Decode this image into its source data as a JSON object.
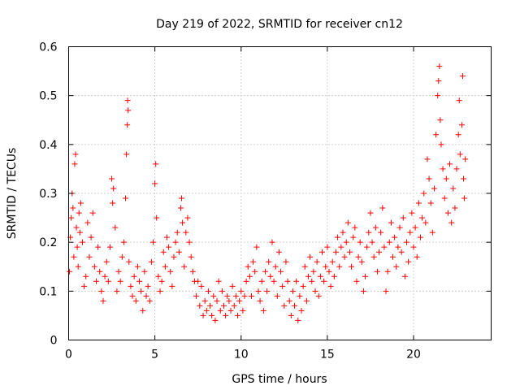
{
  "chart_data": {
    "type": "scatter",
    "title": "Day 219 of 2022, SRMTID for receiver cn12",
    "xlabel": "GPS time / hours",
    "ylabel": "SRMTID / TECUs",
    "xlim": [
      0,
      24.5
    ],
    "ylim": [
      0,
      0.6
    ],
    "xticks": [
      0,
      5,
      10,
      15,
      20
    ],
    "xtick_labels": [
      "0",
      "5",
      "10",
      "15",
      "20"
    ],
    "yticks": [
      0,
      0.1,
      0.2,
      0.3,
      0.4,
      0.5,
      0.6
    ],
    "ytick_labels": [
      "0",
      "0.1",
      "0.2",
      "0.3",
      "0.4",
      "0.5",
      "0.6"
    ],
    "grid": true,
    "marker": "+",
    "color": "#ff0000",
    "series": [
      {
        "name": "SRMTID",
        "points": [
          [
            0.05,
            0.14
          ],
          [
            0.1,
            0.21
          ],
          [
            0.15,
            0.25
          ],
          [
            0.2,
            0.3
          ],
          [
            0.25,
            0.27
          ],
          [
            0.3,
            0.17
          ],
          [
            0.35,
            0.36
          ],
          [
            0.4,
            0.38
          ],
          [
            0.45,
            0.23
          ],
          [
            0.5,
            0.19
          ],
          [
            0.55,
            0.15
          ],
          [
            0.6,
            0.26
          ],
          [
            0.65,
            0.22
          ],
          [
            0.7,
            0.28
          ],
          [
            0.8,
            0.2
          ],
          [
            0.9,
            0.11
          ],
          [
            1.0,
            0.13
          ],
          [
            1.1,
            0.24
          ],
          [
            1.2,
            0.17
          ],
          [
            1.3,
            0.21
          ],
          [
            1.4,
            0.26
          ],
          [
            1.5,
            0.15
          ],
          [
            1.6,
            0.12
          ],
          [
            1.7,
            0.19
          ],
          [
            1.8,
            0.14
          ],
          [
            1.9,
            0.1
          ],
          [
            2.0,
            0.08
          ],
          [
            2.1,
            0.13
          ],
          [
            2.2,
            0.16
          ],
          [
            2.3,
            0.12
          ],
          [
            2.4,
            0.19
          ],
          [
            2.5,
            0.33
          ],
          [
            2.55,
            0.28
          ],
          [
            2.6,
            0.31
          ],
          [
            2.7,
            0.23
          ],
          [
            2.8,
            0.1
          ],
          [
            2.9,
            0.14
          ],
          [
            3.0,
            0.12
          ],
          [
            3.1,
            0.17
          ],
          [
            3.2,
            0.2
          ],
          [
            3.3,
            0.29
          ],
          [
            3.35,
            0.38
          ],
          [
            3.4,
            0.44
          ],
          [
            3.42,
            0.49
          ],
          [
            3.45,
            0.47
          ],
          [
            3.5,
            0.16
          ],
          [
            3.6,
            0.11
          ],
          [
            3.7,
            0.09
          ],
          [
            3.8,
            0.13
          ],
          [
            3.9,
            0.08
          ],
          [
            4.0,
            0.15
          ],
          [
            4.1,
            0.12
          ],
          [
            4.2,
            0.1
          ],
          [
            4.3,
            0.06
          ],
          [
            4.4,
            0.14
          ],
          [
            4.5,
            0.09
          ],
          [
            4.6,
            0.11
          ],
          [
            4.7,
            0.08
          ],
          [
            4.8,
            0.16
          ],
          [
            4.9,
            0.2
          ],
          [
            5.0,
            0.32
          ],
          [
            5.05,
            0.36
          ],
          [
            5.1,
            0.25
          ],
          [
            5.2,
            0.13
          ],
          [
            5.3,
            0.1
          ],
          [
            5.4,
            0.12
          ],
          [
            5.5,
            0.18
          ],
          [
            5.6,
            0.15
          ],
          [
            5.7,
            0.21
          ],
          [
            5.8,
            0.19
          ],
          [
            5.9,
            0.14
          ],
          [
            6.0,
            0.11
          ],
          [
            6.1,
            0.17
          ],
          [
            6.2,
            0.2
          ],
          [
            6.3,
            0.22
          ],
          [
            6.4,
            0.18
          ],
          [
            6.5,
            0.27
          ],
          [
            6.55,
            0.29
          ],
          [
            6.6,
            0.24
          ],
          [
            6.7,
            0.15
          ],
          [
            6.8,
            0.22
          ],
          [
            6.9,
            0.25
          ],
          [
            7.0,
            0.2
          ],
          [
            7.1,
            0.17
          ],
          [
            7.2,
            0.14
          ],
          [
            7.3,
            0.12
          ],
          [
            7.4,
            0.09
          ],
          [
            7.5,
            0.12
          ],
          [
            7.6,
            0.07
          ],
          [
            7.7,
            0.11
          ],
          [
            7.8,
            0.05
          ],
          [
            7.9,
            0.08
          ],
          [
            8.0,
            0.06
          ],
          [
            8.1,
            0.1
          ],
          [
            8.2,
            0.07
          ],
          [
            8.3,
            0.05
          ],
          [
            8.4,
            0.09
          ],
          [
            8.5,
            0.04
          ],
          [
            8.6,
            0.08
          ],
          [
            8.7,
            0.12
          ],
          [
            8.8,
            0.06
          ],
          [
            8.9,
            0.1
          ],
          [
            9.0,
            0.07
          ],
          [
            9.1,
            0.05
          ],
          [
            9.2,
            0.09
          ],
          [
            9.3,
            0.08
          ],
          [
            9.4,
            0.06
          ],
          [
            9.5,
            0.11
          ],
          [
            9.6,
            0.07
          ],
          [
            9.7,
            0.09
          ],
          [
            9.8,
            0.05
          ],
          [
            9.9,
            0.08
          ],
          [
            10.0,
            0.1
          ],
          [
            10.1,
            0.06
          ],
          [
            10.2,
            0.09
          ],
          [
            10.3,
            0.12
          ],
          [
            10.4,
            0.15
          ],
          [
            10.5,
            0.13
          ],
          [
            10.6,
            0.09
          ],
          [
            10.7,
            0.16
          ],
          [
            10.8,
            0.14
          ],
          [
            10.9,
            0.19
          ],
          [
            11.0,
            0.1
          ],
          [
            11.1,
            0.08
          ],
          [
            11.2,
            0.12
          ],
          [
            11.3,
            0.06
          ],
          [
            11.4,
            0.14
          ],
          [
            11.5,
            0.1
          ],
          [
            11.6,
            0.16
          ],
          [
            11.7,
            0.13
          ],
          [
            11.8,
            0.2
          ],
          [
            11.9,
            0.12
          ],
          [
            12.0,
            0.15
          ],
          [
            12.1,
            0.09
          ],
          [
            12.2,
            0.18
          ],
          [
            12.3,
            0.14
          ],
          [
            12.4,
            0.11
          ],
          [
            12.5,
            0.07
          ],
          [
            12.6,
            0.16
          ],
          [
            12.7,
            0.12
          ],
          [
            12.8,
            0.08
          ],
          [
            12.9,
            0.05
          ],
          [
            13.0,
            0.1
          ],
          [
            13.1,
            0.07
          ],
          [
            13.2,
            0.12
          ],
          [
            13.3,
            0.04
          ],
          [
            13.4,
            0.09
          ],
          [
            13.5,
            0.06
          ],
          [
            13.6,
            0.11
          ],
          [
            13.7,
            0.15
          ],
          [
            13.8,
            0.08
          ],
          [
            13.9,
            0.13
          ],
          [
            14.0,
            0.17
          ],
          [
            14.1,
            0.12
          ],
          [
            14.2,
            0.14
          ],
          [
            14.3,
            0.1
          ],
          [
            14.4,
            0.16
          ],
          [
            14.5,
            0.09
          ],
          [
            14.6,
            0.13
          ],
          [
            14.7,
            0.18
          ],
          [
            14.8,
            0.12
          ],
          [
            14.9,
            0.15
          ],
          [
            15.0,
            0.19
          ],
          [
            15.1,
            0.14
          ],
          [
            15.2,
            0.11
          ],
          [
            15.3,
            0.16
          ],
          [
            15.4,
            0.13
          ],
          [
            15.5,
            0.18
          ],
          [
            15.6,
            0.21
          ],
          [
            15.7,
            0.15
          ],
          [
            15.8,
            0.19
          ],
          [
            15.9,
            0.22
          ],
          [
            16.0,
            0.17
          ],
          [
            16.1,
            0.2
          ],
          [
            16.2,
            0.24
          ],
          [
            16.3,
            0.18
          ],
          [
            16.4,
            0.15
          ],
          [
            16.5,
            0.21
          ],
          [
            16.6,
            0.23
          ],
          [
            16.7,
            0.12
          ],
          [
            16.8,
            0.17
          ],
          [
            16.9,
            0.2
          ],
          [
            17.0,
            0.16
          ],
          [
            17.1,
            0.1
          ],
          [
            17.2,
            0.13
          ],
          [
            17.3,
            0.19
          ],
          [
            17.4,
            0.22
          ],
          [
            17.5,
            0.26
          ],
          [
            17.6,
            0.2
          ],
          [
            17.7,
            0.17
          ],
          [
            17.8,
            0.23
          ],
          [
            17.9,
            0.14
          ],
          [
            18.0,
            0.18
          ],
          [
            18.1,
            0.22
          ],
          [
            18.2,
            0.27
          ],
          [
            18.3,
            0.19
          ],
          [
            18.4,
            0.1
          ],
          [
            18.5,
            0.14
          ],
          [
            18.6,
            0.2
          ],
          [
            18.7,
            0.24
          ],
          [
            18.8,
            0.17
          ],
          [
            18.9,
            0.21
          ],
          [
            19.0,
            0.15
          ],
          [
            19.1,
            0.19
          ],
          [
            19.2,
            0.23
          ],
          [
            19.3,
            0.18
          ],
          [
            19.4,
            0.25
          ],
          [
            19.5,
            0.13
          ],
          [
            19.6,
            0.2
          ],
          [
            19.7,
            0.16
          ],
          [
            19.8,
            0.22
          ],
          [
            19.9,
            0.26
          ],
          [
            20.0,
            0.19
          ],
          [
            20.1,
            0.23
          ],
          [
            20.2,
            0.17
          ],
          [
            20.3,
            0.28
          ],
          [
            20.4,
            0.21
          ],
          [
            20.5,
            0.25
          ],
          [
            20.6,
            0.3
          ],
          [
            20.7,
            0.24
          ],
          [
            20.8,
            0.37
          ],
          [
            20.9,
            0.33
          ],
          [
            21.0,
            0.28
          ],
          [
            21.1,
            0.22
          ],
          [
            21.2,
            0.31
          ],
          [
            21.3,
            0.42
          ],
          [
            21.4,
            0.5
          ],
          [
            21.45,
            0.53
          ],
          [
            21.5,
            0.56
          ],
          [
            21.55,
            0.45
          ],
          [
            21.6,
            0.4
          ],
          [
            21.7,
            0.35
          ],
          [
            21.8,
            0.29
          ],
          [
            21.9,
            0.33
          ],
          [
            22.0,
            0.26
          ],
          [
            22.1,
            0.36
          ],
          [
            22.2,
            0.24
          ],
          [
            22.3,
            0.31
          ],
          [
            22.4,
            0.27
          ],
          [
            22.5,
            0.35
          ],
          [
            22.6,
            0.42
          ],
          [
            22.65,
            0.49
          ],
          [
            22.7,
            0.38
          ],
          [
            22.8,
            0.44
          ],
          [
            22.85,
            0.54
          ],
          [
            22.9,
            0.33
          ],
          [
            22.95,
            0.29
          ],
          [
            23.0,
            0.37
          ]
        ]
      }
    ]
  }
}
